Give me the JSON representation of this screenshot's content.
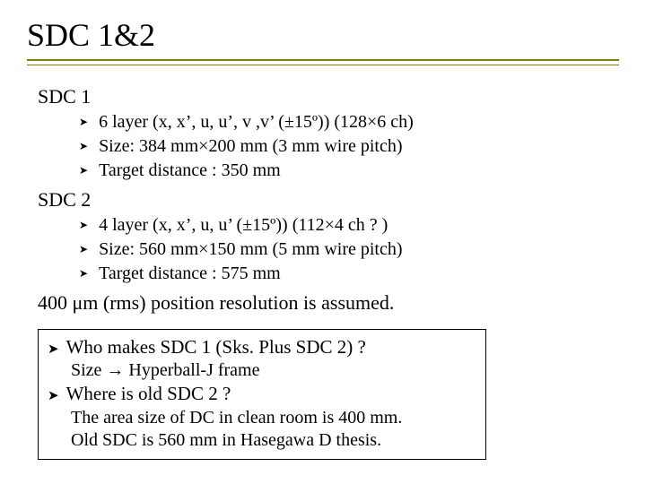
{
  "title": "SDC 1&2",
  "sdc1": {
    "label": "SDC 1",
    "items": [
      "6 layer (x, x’, u, u’, v ,v’ (±15º)) (128×6 ch)",
      "Size: 384 mm×200 mm (3 mm wire pitch)",
      "Target distance : 350 mm"
    ]
  },
  "sdc2": {
    "label": "SDC 2",
    "items": [
      "4 layer (x, x’, u, u’ (±15º)) (112×4 ch ? )",
      "Size: 560 mm×150 mm (5 mm wire pitch)",
      "Target distance : 575 mm"
    ]
  },
  "resolution": "400 μm (rms) position resolution is assumed.",
  "q1": {
    "q": "Who makes SDC 1 (Sks. Plus SDC 2) ?",
    "a": "Size → Hyperball-J frame"
  },
  "q2": {
    "q": "Where is old SDC 2 ?",
    "a1": "The area size of DC in clean room is 400 mm.",
    "a2": "Old SDC is 560 mm in Hasegawa D thesis."
  }
}
